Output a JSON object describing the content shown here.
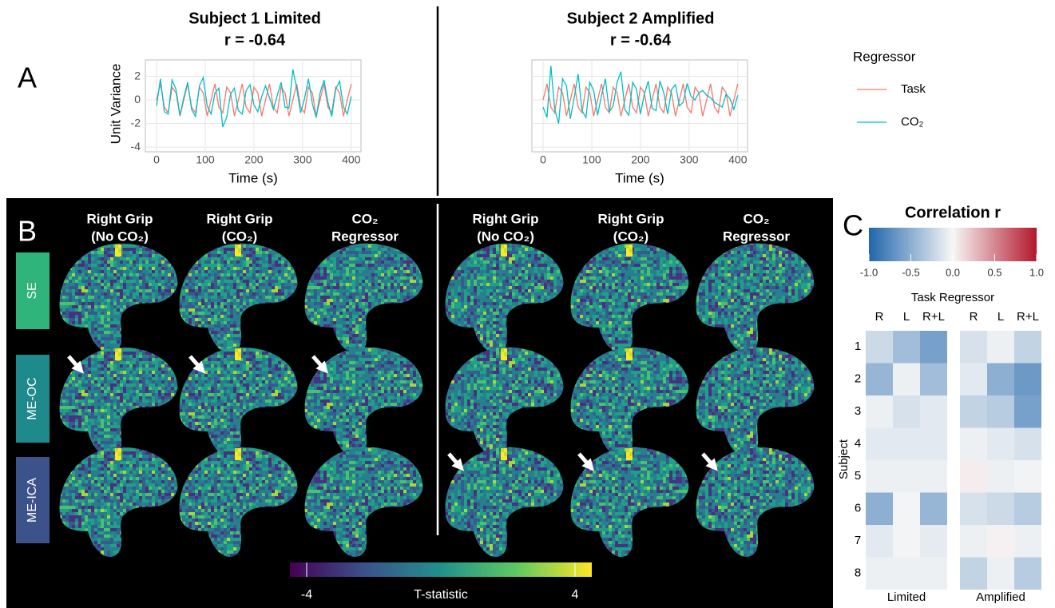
{
  "panel_labels": [
    "A",
    "B",
    "C"
  ],
  "chart_data": [
    {
      "type": "line",
      "title": "Subject 1 Limited",
      "subtitle": "r = -0.64",
      "x_label": "Time (s)",
      "y_label": "Unit Variance",
      "legend_title": "Regressor",
      "x": [
        0,
        8,
        16,
        24,
        32,
        40,
        48,
        56,
        64,
        72,
        80,
        88,
        96,
        104,
        112,
        120,
        128,
        136,
        144,
        152,
        160,
        168,
        176,
        184,
        192,
        200,
        208,
        216,
        224,
        232,
        240,
        248,
        256,
        264,
        272,
        280,
        288,
        296,
        304,
        312,
        320,
        328,
        336,
        344,
        352,
        360,
        368,
        376,
        384,
        392,
        400
      ],
      "series": [
        {
          "name": "Task",
          "color": "#f8766d",
          "values": [
            0,
            1.37,
            -0.61,
            -1.09,
            1.09,
            0.61,
            -1.37,
            0,
            1.37,
            -0.61,
            -1.09,
            1.09,
            0.61,
            -1.37,
            0,
            1.37,
            -0.61,
            -1.09,
            1.09,
            0.61,
            -1.37,
            0,
            1.37,
            -0.61,
            -1.09,
            1.09,
            0.61,
            -1.37,
            0,
            1.37,
            -0.61,
            -1.09,
            1.09,
            0.61,
            -1.37,
            0,
            1.37,
            -0.61,
            -1.09,
            1.09,
            0.61,
            -1.37,
            0,
            1.37,
            -0.61,
            -1.09,
            1.09,
            0.61,
            -1.37,
            0,
            1.37
          ]
        },
        {
          "name": "CO₂",
          "color": "#00bfc4",
          "values": [
            -0.5,
            1.8,
            -1.0,
            -1.2,
            1.7,
            0.9,
            -1.3,
            0.2,
            1.5,
            -0.8,
            -1.4,
            1.2,
            1.9,
            -0.5,
            -1.2,
            0.6,
            1.0,
            -2.3,
            -1.5,
            0.5,
            1.0,
            -0.9,
            -1.2,
            0.8,
            1.3,
            -0.4,
            -1.0,
            0.3,
            1.2,
            0.2,
            -0.8,
            0.4,
            1.5,
            -0.6,
            -0.7,
            2.6,
            1.0,
            -1.1,
            0.1,
            1.8,
            -0.3,
            -1.5,
            0.6,
            1.7,
            -0.2,
            -1.4,
            0.9,
            1.6,
            -0.6,
            -1.2,
            0.3
          ]
        }
      ],
      "xlim": [
        -23,
        420
      ],
      "xticks": [
        0,
        100,
        200,
        300,
        400
      ],
      "ylim": [
        -4.4,
        3.4
      ],
      "yticks": [
        -4,
        -2,
        0,
        2
      ],
      "ytick_labels": true,
      "grid": true
    },
    {
      "type": "line",
      "title": "Subject 2 Amplified",
      "subtitle": "r = -0.64",
      "x_label": "Time (s)",
      "x": [
        0,
        8,
        16,
        24,
        32,
        40,
        48,
        56,
        64,
        72,
        80,
        88,
        96,
        104,
        112,
        120,
        128,
        136,
        144,
        152,
        160,
        168,
        176,
        184,
        192,
        200,
        208,
        216,
        224,
        232,
        240,
        248,
        256,
        264,
        272,
        280,
        288,
        296,
        304,
        312,
        320,
        328,
        336,
        344,
        352,
        360,
        368,
        376,
        384,
        392,
        400
      ],
      "series": [
        {
          "color": "#f8766d",
          "values": [
            0,
            1.37,
            -0.61,
            -1.09,
            1.09,
            0.61,
            -1.37,
            0,
            1.37,
            -0.61,
            -1.09,
            1.09,
            0.61,
            -1.37,
            0,
            1.37,
            -0.61,
            -1.09,
            1.09,
            0.61,
            -1.37,
            0,
            1.37,
            -0.61,
            -1.09,
            1.09,
            0.61,
            -1.37,
            0,
            1.37,
            -0.61,
            -1.09,
            1.09,
            0.61,
            -1.37,
            0,
            1.37,
            -0.61,
            -1.09,
            1.09,
            0.61,
            -1.37,
            0,
            1.37,
            -0.61,
            -1.09,
            1.09,
            0.61,
            -1.37,
            0,
            1.37
          ]
        },
        {
          "color": "#00bfc4",
          "values": [
            -0.6,
            -1.5,
            2.9,
            -0.8,
            -2.0,
            1.8,
            1.2,
            -1.6,
            0.2,
            2.2,
            -0.9,
            -1.5,
            1.5,
            0.8,
            -1.3,
            0.4,
            1.8,
            -1.0,
            -0.5,
            1.5,
            2.4,
            -0.8,
            -1.3,
            1.5,
            0.9,
            -1.2,
            0.5,
            1.6,
            -0.7,
            -0.9,
            1.6,
            0.6,
            -1.2,
            0.9,
            1.3,
            -0.5,
            -0.2,
            1.4,
            0.3,
            0.0,
            0.6,
            0.8,
            0.4,
            0.2,
            -0.2,
            -0.4,
            -0.6,
            0.5,
            0.1,
            -0.8,
            0.4
          ]
        }
      ],
      "xlim": [
        -23,
        420
      ],
      "xticks": [
        0,
        100,
        200,
        300,
        400
      ],
      "ylim": [
        -4.4,
        3.4
      ],
      "yticks": [
        -4,
        -2,
        0,
        2
      ],
      "ytick_labels": false,
      "grid": true
    },
    {
      "type": "heatmap",
      "title": "Correlation r",
      "x_label": "Task Regressor",
      "y_label": "Subject",
      "groups": [
        "Limited",
        "Amplified"
      ],
      "columns": [
        "R",
        "L",
        "R+L"
      ],
      "categories": [
        "1",
        "2",
        "3",
        "4",
        "5",
        "6",
        "7",
        "8"
      ],
      "values": [
        [
          -0.2,
          -0.4,
          -0.6,
          -0.15,
          -0.05,
          -0.25
        ],
        [
          -0.45,
          -0.05,
          -0.4,
          -0.1,
          -0.5,
          -0.65
        ],
        [
          -0.05,
          -0.15,
          -0.1,
          -0.25,
          -0.3,
          -0.6
        ],
        [
          -0.1,
          -0.1,
          -0.1,
          -0.05,
          -0.1,
          -0.15
        ],
        [
          -0.05,
          -0.05,
          -0.05,
          0.05,
          -0.05,
          -0.03
        ],
        [
          -0.5,
          -0.02,
          -0.45,
          -0.15,
          -0.2,
          -0.3
        ],
        [
          -0.1,
          -0.02,
          -0.08,
          -0.05,
          0.03,
          -0.05
        ],
        [
          -0.05,
          -0.05,
          -0.05,
          -0.25,
          -0.05,
          -0.3
        ]
      ],
      "clim": [
        -1,
        1
      ],
      "cticks": [
        {
          "value": -1,
          "label": "-1.0"
        },
        {
          "value": -0.5,
          "label": "-0.5"
        },
        {
          "value": 0,
          "label": "0.0"
        },
        {
          "value": 0.5,
          "label": "0.5"
        },
        {
          "value": 1,
          "label": "1.0"
        }
      ],
      "low_color": "#2166ac",
      "mid_color": "#f7f7f7",
      "high_color": "#b2182b"
    }
  ],
  "brain_maps": {
    "columns": [
      {
        "line1": "Right Grip",
        "line2": "(No CO₂)"
      },
      {
        "line1": "Right Grip",
        "line2": "(CO₂)"
      },
      {
        "line1": "CO₂",
        "line2": "Regressor"
      },
      {
        "line1": "Right Grip",
        "line2": "(No CO₂)"
      },
      {
        "line1": "Right Grip",
        "line2": "(CO₂)"
      },
      {
        "line1": "CO₂",
        "line2": "Regressor"
      }
    ],
    "rows": [
      "SE",
      "ME-OC",
      "ME-ICA"
    ],
    "colorbar": {
      "label": "T-statistic",
      "lim": [
        -4.5,
        4.5
      ],
      "ticks": [
        -4,
        4
      ]
    }
  }
}
